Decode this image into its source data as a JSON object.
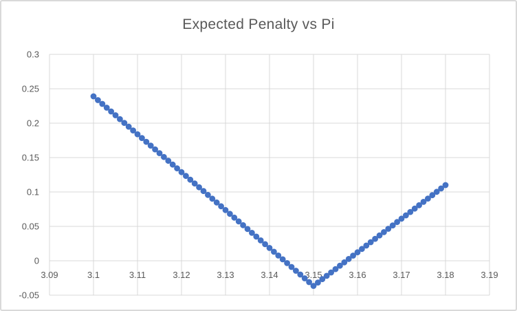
{
  "chart_data": {
    "type": "scatter",
    "title": "Expected Penalty vs Pi",
    "xlabel": "",
    "ylabel": "",
    "grid": true,
    "legend": false,
    "xlim": [
      3.09,
      3.19
    ],
    "ylim": [
      -0.05,
      0.3
    ],
    "x_ticks": [
      3.09,
      3.1,
      3.11,
      3.12,
      3.13,
      3.14,
      3.15,
      3.16,
      3.17,
      3.18,
      3.19
    ],
    "x_tick_labels": [
      "3.09",
      "3.1",
      "3.11",
      "3.12",
      "3.13",
      "3.14",
      "3.15",
      "3.16",
      "3.17",
      "3.18",
      "3.19"
    ],
    "y_ticks": [
      -0.05,
      0,
      0.05,
      0.1,
      0.15,
      0.2,
      0.25,
      0.3
    ],
    "y_tick_labels": [
      "-0.05",
      "0",
      "0.05",
      "0.1",
      "0.15",
      "0.2",
      "0.25",
      "0.3"
    ],
    "x": [
      3.1,
      3.101,
      3.102,
      3.103,
      3.104,
      3.105,
      3.106,
      3.107,
      3.108,
      3.109,
      3.11,
      3.111,
      3.112,
      3.113,
      3.114,
      3.115,
      3.116,
      3.117,
      3.118,
      3.119,
      3.12,
      3.121,
      3.122,
      3.123,
      3.124,
      3.125,
      3.126,
      3.127,
      3.128,
      3.129,
      3.13,
      3.131,
      3.132,
      3.133,
      3.134,
      3.135,
      3.136,
      3.137,
      3.138,
      3.139,
      3.14,
      3.141,
      3.142,
      3.143,
      3.144,
      3.145,
      3.146,
      3.147,
      3.148,
      3.149,
      3.15,
      3.151,
      3.152,
      3.153,
      3.154,
      3.155,
      3.156,
      3.157,
      3.158,
      3.159,
      3.16,
      3.161,
      3.162,
      3.163,
      3.164,
      3.165,
      3.166,
      3.167,
      3.168,
      3.169,
      3.17,
      3.171,
      3.172,
      3.173,
      3.174,
      3.175,
      3.176,
      3.177,
      3.178,
      3.179,
      3.18
    ],
    "y": [
      0.239,
      0.2335,
      0.228,
      0.2225,
      0.217,
      0.2115,
      0.2059,
      0.2004,
      0.1949,
      0.1894,
      0.1839,
      0.1784,
      0.1729,
      0.1674,
      0.1619,
      0.1564,
      0.1508,
      0.1453,
      0.1398,
      0.1343,
      0.1288,
      0.1233,
      0.1178,
      0.1123,
      0.1068,
      0.1013,
      0.0957,
      0.0902,
      0.0847,
      0.0792,
      0.0737,
      0.0682,
      0.0627,
      0.0572,
      0.0517,
      0.0462,
      0.0406,
      0.0351,
      0.0296,
      0.0241,
      0.0186,
      0.0131,
      0.0076,
      0.0021,
      -0.0034,
      -0.009,
      -0.0145,
      -0.02,
      -0.0255,
      -0.031,
      -0.0365,
      -0.0316,
      -0.0267,
      -0.0219,
      -0.017,
      -0.0121,
      -0.0072,
      -0.0023,
      0.0026,
      0.0075,
      0.0123,
      0.0172,
      0.0221,
      0.027,
      0.0319,
      0.0368,
      0.0416,
      0.0465,
      0.0514,
      0.0563,
      0.0612,
      0.066,
      0.0709,
      0.0758,
      0.0807,
      0.0856,
      0.0904,
      0.0953,
      0.1002,
      0.1051,
      0.11
    ],
    "colors": {
      "marker": "#4472C4",
      "gridline": "#D9D9D9",
      "text": "#595959",
      "chart_border": "#D9D9D9",
      "background": "#FFFFFF"
    }
  }
}
